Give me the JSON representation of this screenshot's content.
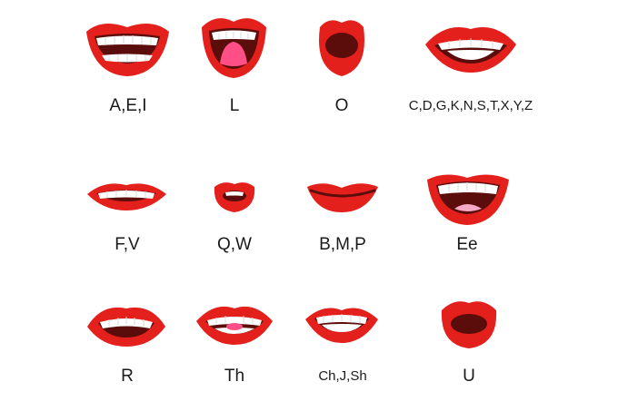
{
  "colors": {
    "lip": "#e3201b",
    "lip_shine": "#f25a50",
    "mouth_dark": "#5a0d0b",
    "teeth": "#ffffff",
    "tongue": "#ff4f86",
    "tongue_light": "#f7a8c4",
    "label": "#1a1a1a"
  },
  "phonemes": [
    {
      "label": "A,E,I",
      "shape": "wide-smile-teeth"
    },
    {
      "label": "L",
      "shape": "open-tongue"
    },
    {
      "label": "O",
      "shape": "round-o"
    },
    {
      "label": "C,D,G,K,N,S,T,X,Y,Z",
      "shape": "wide-teeth"
    },
    {
      "label": "F,V",
      "shape": "flat-teeth"
    },
    {
      "label": "Q,W",
      "shape": "pucker"
    },
    {
      "label": "B,M,P",
      "shape": "closed-smile"
    },
    {
      "label": "Ee",
      "shape": "big-smile-tongue"
    },
    {
      "label": "R",
      "shape": "flared-teeth"
    },
    {
      "label": "Th",
      "shape": "teeth-tongue-tip"
    },
    {
      "label": "Ch,J,Sh",
      "shape": "clenched-teeth"
    },
    {
      "label": "U",
      "shape": "small-round"
    }
  ]
}
